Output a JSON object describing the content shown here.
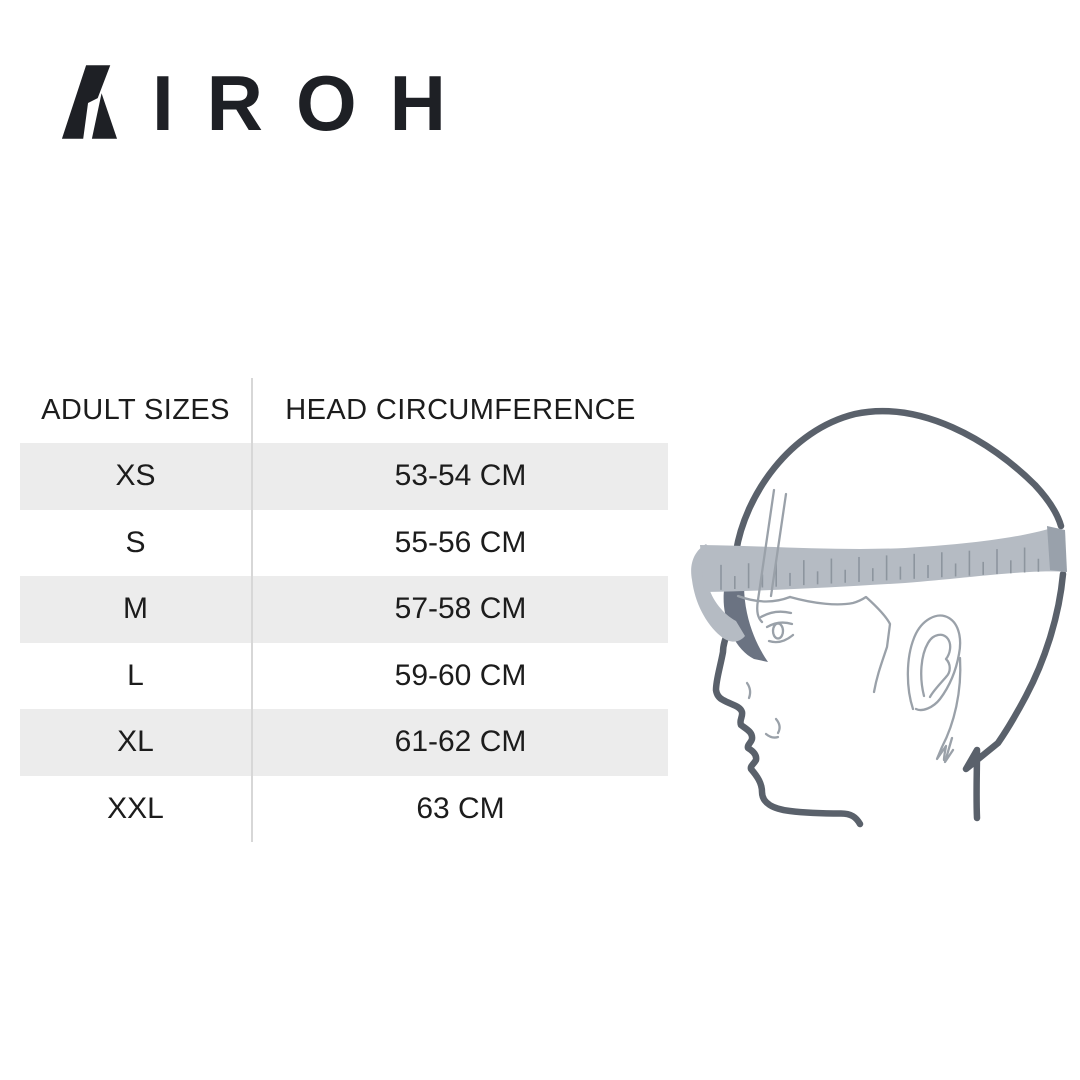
{
  "brand": {
    "name": "AIROH",
    "logo_text": "IROH",
    "logo_color": "#1e2025"
  },
  "size_table": {
    "headers": [
      "ADULT SIZES",
      "HEAD CIRCUMFERENCE"
    ],
    "rows": [
      {
        "size": "XS",
        "circumference": "53-54 CM"
      },
      {
        "size": "S",
        "circumference": "55-56 CM"
      },
      {
        "size": "M",
        "circumference": "57-58 CM"
      },
      {
        "size": "L",
        "circumference": "59-60 CM"
      },
      {
        "size": "XL",
        "circumference": "61-62 CM"
      },
      {
        "size": "XXL",
        "circumference": "63 CM"
      }
    ]
  },
  "illustration": {
    "subject": "head-profile-with-measuring-tape",
    "colors": {
      "outline": "#5a616b",
      "tape": "#b5bbc3",
      "tape_dark": "#6b7382",
      "tape_edge": "#99a1ab",
      "detail_lines": "#9aa1a9",
      "tick": "#8d959e"
    }
  },
  "page": {
    "background": "#ffffff",
    "text_color": "#1c1c1c",
    "row_stripe": "#ececec",
    "divider": "#d7d7d7"
  }
}
